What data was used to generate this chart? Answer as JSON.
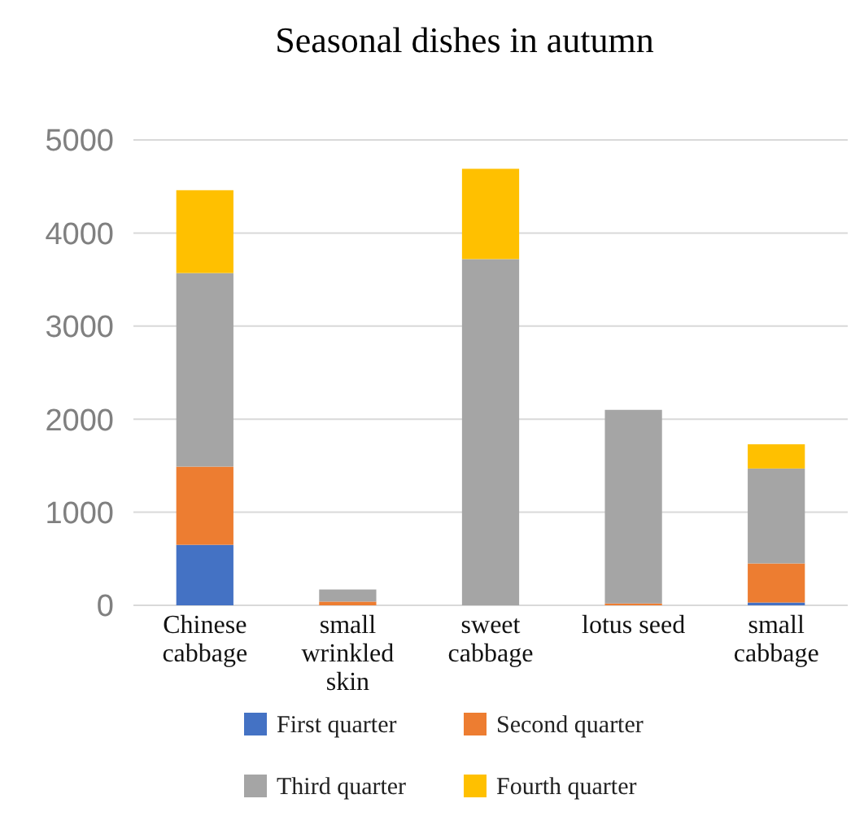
{
  "chart_data": {
    "type": "bar",
    "title": "Seasonal dishes in autumn",
    "stacked": true,
    "categories": [
      "Chinese cabbage",
      "small wrinkled skin",
      "sweet cabbage",
      "lotus seed",
      "small cabbage"
    ],
    "series": [
      {
        "name": "First quarter",
        "color": "#4472c4",
        "values": [
          650,
          0,
          0,
          0,
          30
        ]
      },
      {
        "name": "Second quarter",
        "color": "#ed7d31",
        "values": [
          840,
          40,
          0,
          20,
          420
        ]
      },
      {
        "name": "Third quarter",
        "color": "#a5a5a5",
        "values": [
          2080,
          130,
          3720,
          2080,
          1020
        ]
      },
      {
        "name": "Fourth quarter",
        "color": "#ffc000",
        "values": [
          890,
          0,
          970,
          0,
          260
        ]
      }
    ],
    "ylim": [
      0,
      5000
    ],
    "yticks": [
      0,
      1000,
      2000,
      3000,
      4000,
      5000
    ],
    "grid": "y",
    "legend": "bottom"
  }
}
